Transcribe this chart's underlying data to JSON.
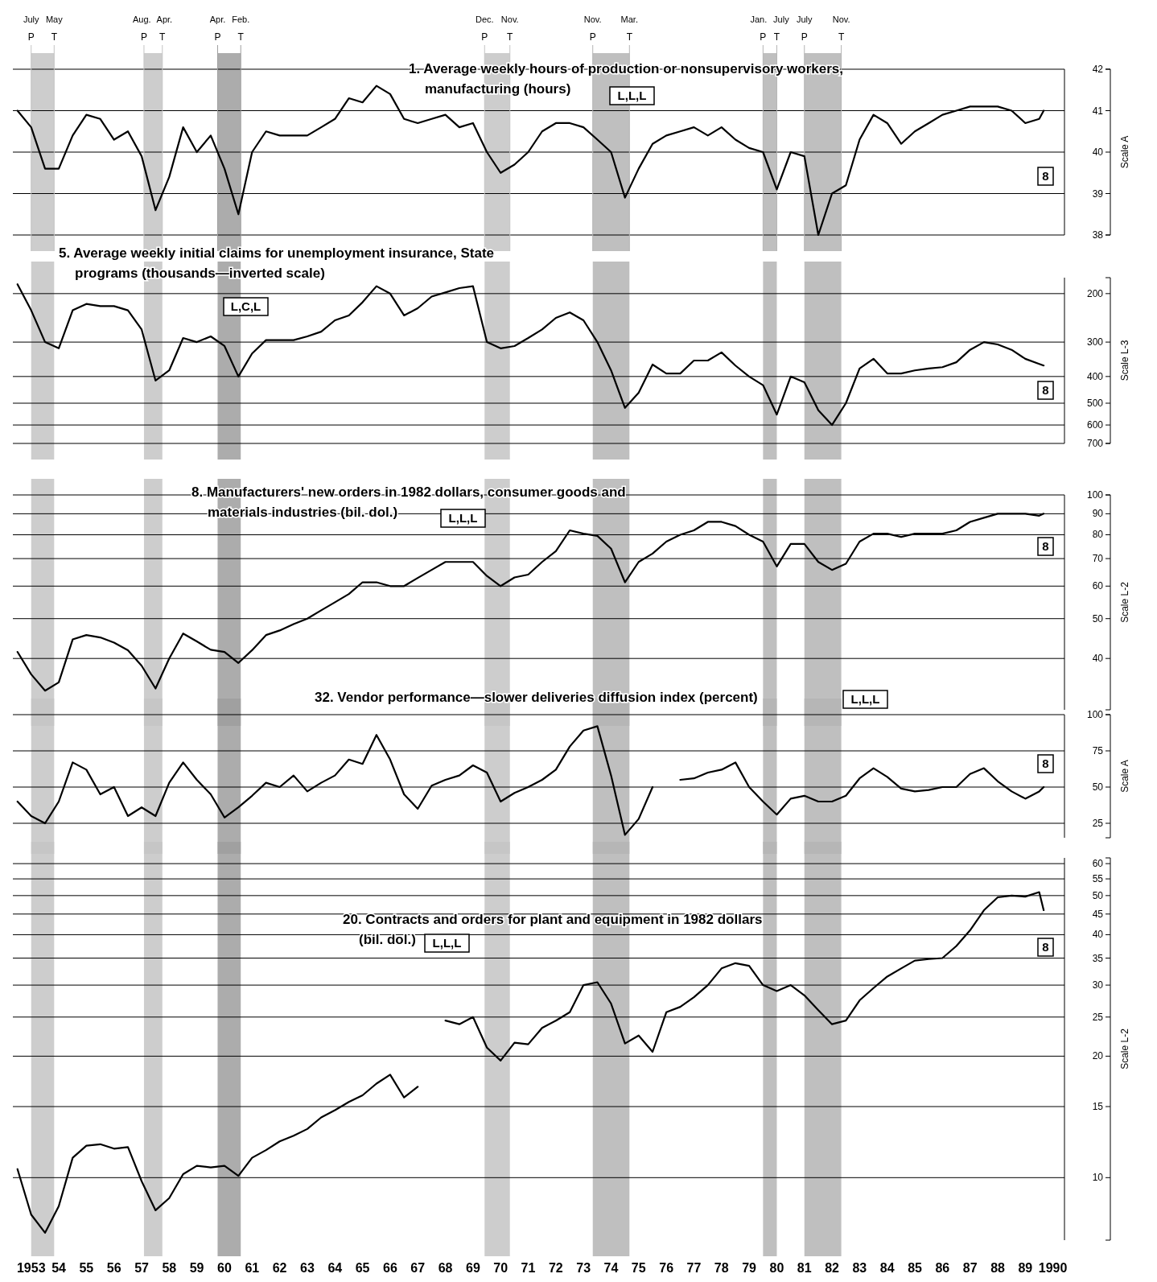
{
  "chart_data": [
    {
      "type": "line",
      "title": "1. Average weekly hours of production or nonsupervisory workers, manufacturing (hours)",
      "ylabel": "Scale A",
      "annotations": [
        "L,L,L",
        "8"
      ],
      "x": [
        "1953-01",
        "1953-07",
        "1954-01",
        "1954-07",
        "1955-01",
        "1955-07",
        "1956-01",
        "1956-07",
        "1957-01",
        "1957-07",
        "1958-01",
        "1958-07",
        "1959-01",
        "1959-07",
        "1960-01",
        "1960-07",
        "1961-01",
        "1961-07",
        "1962-01",
        "1962-07",
        "1963-01",
        "1963-07",
        "1964-01",
        "1964-07",
        "1965-01",
        "1965-07",
        "1966-01",
        "1966-07",
        "1967-01",
        "1967-07",
        "1968-01",
        "1968-07",
        "1969-01",
        "1969-07",
        "1970-01",
        "1970-07",
        "1971-01",
        "1971-07",
        "1972-01",
        "1972-07",
        "1973-01",
        "1973-07",
        "1974-01",
        "1974-07",
        "1975-01",
        "1975-07",
        "1976-01",
        "1976-07",
        "1977-01",
        "1977-07",
        "1978-01",
        "1978-07",
        "1979-01",
        "1979-07",
        "1980-01",
        "1980-07",
        "1981-01",
        "1981-07",
        "1982-01",
        "1982-07",
        "1983-01",
        "1983-07",
        "1984-01",
        "1984-07",
        "1985-01",
        "1985-07",
        "1986-01",
        "1986-07",
        "1987-01",
        "1987-07",
        "1988-01",
        "1988-07",
        "1989-01",
        "1989-07",
        "1990-01",
        "1990-03"
      ],
      "series": [
        {
          "color": "#000000",
          "values": [
            41.0,
            40.6,
            39.6,
            39.6,
            40.4,
            40.9,
            40.8,
            40.3,
            40.5,
            39.9,
            38.6,
            39.4,
            40.6,
            40.0,
            40.4,
            39.6,
            38.5,
            40.0,
            40.5,
            40.4,
            40.4,
            40.4,
            40.6,
            40.8,
            41.3,
            41.2,
            41.6,
            41.4,
            40.8,
            40.7,
            40.8,
            40.9,
            40.6,
            40.7,
            40.0,
            39.5,
            39.7,
            40.0,
            40.5,
            40.7,
            40.7,
            40.6,
            40.3,
            40.0,
            38.9,
            39.6,
            40.2,
            40.4,
            40.5,
            40.6,
            40.4,
            40.6,
            40.3,
            40.1,
            40.0,
            39.1,
            40.0,
            39.9,
            38.0,
            39.0,
            39.2,
            40.3,
            40.9,
            40.7,
            40.2,
            40.5,
            40.7,
            40.9,
            41.0,
            41.1,
            41.1,
            41.1,
            41.0,
            40.7,
            40.8,
            41.0
          ]
        }
      ],
      "xlim": [
        "1952-11",
        "1990-12"
      ],
      "ylim": [
        38,
        42
      ],
      "yticks": [
        38,
        39,
        40,
        41,
        42
      ],
      "grid": "y",
      "tick_labels": "y",
      "bands": [
        {
          "axis": "x",
          "from": "1953-07",
          "to": "1954-05",
          "color": "#c4c4c4"
        },
        {
          "axis": "x",
          "from": "1957-08",
          "to": "1958-04",
          "color": "#c4c4c4"
        },
        {
          "axis": "x",
          "from": "1960-04",
          "to": "1961-02",
          "color": "#9e9e9e"
        },
        {
          "axis": "x",
          "from": "1969-12",
          "to": "1970-11",
          "color": "#c4c4c4"
        },
        {
          "axis": "x",
          "from": "1973-11",
          "to": "1975-03",
          "color": "#b4b4b4"
        },
        {
          "axis": "x",
          "from": "1980-01",
          "to": "1980-07",
          "color": "#b4b4b4"
        },
        {
          "axis": "x",
          "from": "1981-07",
          "to": "1982-11",
          "color": "#b4b4b4"
        }
      ],
      "ref_lines": [
        {
          "axis": "x",
          "value": "1953-07",
          "label": "July P",
          "color": "#c4c4c4"
        },
        {
          "axis": "x",
          "value": "1954-05",
          "label": "May T",
          "color": "#c4c4c4"
        },
        {
          "axis": "x",
          "value": "1957-08",
          "label": "Aug. P",
          "color": "#c4c4c4"
        },
        {
          "axis": "x",
          "value": "1958-04",
          "label": "Apr. T",
          "color": "#c4c4c4"
        },
        {
          "axis": "x",
          "value": "1960-04",
          "label": "Apr. P",
          "color": "#9e9e9e"
        },
        {
          "axis": "x",
          "value": "1961-02",
          "label": "Feb. T",
          "color": "#9e9e9e"
        },
        {
          "axis": "x",
          "value": "1969-12",
          "label": "Dec. P",
          "color": "#c4c4c4"
        },
        {
          "axis": "x",
          "value": "1970-11",
          "label": "Nov. T",
          "color": "#c4c4c4"
        },
        {
          "axis": "x",
          "value": "1973-11",
          "label": "Nov. P",
          "color": "#b4b4b4"
        },
        {
          "axis": "x",
          "value": "1975-03",
          "label": "Mar. T",
          "color": "#b4b4b4"
        },
        {
          "axis": "x",
          "value": "1980-01",
          "label": "Jan. P",
          "color": "#b4b4b4"
        },
        {
          "axis": "x",
          "value": "1980-07",
          "label": "July T",
          "color": "#b4b4b4"
        },
        {
          "axis": "x",
          "value": "1981-07",
          "label": "July P",
          "color": "#b4b4b4"
        },
        {
          "axis": "x",
          "value": "1982-11",
          "label": "Nov. T",
          "color": "#b4b4b4"
        }
      ]
    },
    {
      "type": "line",
      "title": "5. Average weekly initial claims for unemployment insurance, State programs (thousands—inverted scale)",
      "ylabel": "Scale L-3",
      "annotations": [
        "L,C,L",
        "8"
      ],
      "x": [
        "1953-01",
        "1953-07",
        "1954-01",
        "1954-07",
        "1955-01",
        "1955-07",
        "1956-01",
        "1956-07",
        "1957-01",
        "1957-07",
        "1958-01",
        "1958-07",
        "1959-01",
        "1959-07",
        "1960-01",
        "1960-07",
        "1961-01",
        "1961-07",
        "1962-01",
        "1962-07",
        "1963-01",
        "1963-07",
        "1964-01",
        "1964-07",
        "1965-01",
        "1965-07",
        "1966-01",
        "1966-07",
        "1967-01",
        "1967-07",
        "1968-01",
        "1968-07",
        "1969-01",
        "1969-07",
        "1970-01",
        "1970-07",
        "1971-01",
        "1971-07",
        "1972-01",
        "1972-07",
        "1973-01",
        "1973-07",
        "1974-01",
        "1974-07",
        "1975-01",
        "1975-07",
        "1976-01",
        "1976-07",
        "1977-01",
        "1977-07",
        "1978-01",
        "1978-07",
        "1979-01",
        "1979-07",
        "1980-01",
        "1980-07",
        "1981-01",
        "1981-07",
        "1982-01",
        "1982-07",
        "1983-01",
        "1983-07",
        "1984-01",
        "1984-07",
        "1985-01",
        "1985-07",
        "1986-01",
        "1986-07",
        "1987-01",
        "1987-07",
        "1988-01",
        "1988-07",
        "1989-01",
        "1989-07",
        "1990-01",
        "1990-03"
      ],
      "series": [
        {
          "color": "#000000",
          "values": [
            185,
            230,
            300,
            316,
            230,
            218,
            222,
            222,
            230,
            270,
            414,
            380,
            290,
            300,
            286,
            310,
            400,
            330,
            295,
            295,
            295,
            286,
            275,
            250,
            240,
            215,
            188,
            200,
            240,
            226,
            205,
            198,
            191,
            188,
            300,
            316,
            310,
            290,
            270,
            245,
            234,
            250,
            300,
            380,
            520,
            458,
            362,
            390,
            390,
            350,
            350,
            327,
            365,
            400,
            430,
            550,
            400,
            420,
            530,
            600,
            500,
            374,
            345,
            390,
            390,
            380,
            374,
            370,
            355,
            320,
            300,
            306,
            320,
            345,
            360,
            365
          ]
        }
      ],
      "xlim": [
        "1952-11",
        "1990-12"
      ],
      "ylim": [
        700,
        175
      ],
      "yticks": [
        200,
        300,
        400,
        500,
        600,
        700
      ],
      "log": "y",
      "grid": "y",
      "tick_labels": "y",
      "bands": [
        {
          "axis": "x",
          "from": "1953-07",
          "to": "1954-05",
          "color": "#c4c4c4"
        },
        {
          "axis": "x",
          "from": "1957-08",
          "to": "1958-04",
          "color": "#c4c4c4"
        },
        {
          "axis": "x",
          "from": "1960-04",
          "to": "1961-02",
          "color": "#9e9e9e"
        },
        {
          "axis": "x",
          "from": "1969-12",
          "to": "1970-11",
          "color": "#c4c4c4"
        },
        {
          "axis": "x",
          "from": "1973-11",
          "to": "1975-03",
          "color": "#b4b4b4"
        },
        {
          "axis": "x",
          "from": "1980-01",
          "to": "1980-07",
          "color": "#b4b4b4"
        },
        {
          "axis": "x",
          "from": "1981-07",
          "to": "1982-11",
          "color": "#b4b4b4"
        }
      ]
    },
    {
      "type": "line",
      "title": "8. Manufacturers' new orders in 1982 dollars, consumer goods and materials industries (bil. dol.)",
      "ylabel": "Scale L-2",
      "annotations": [
        "L,L,L",
        "8"
      ],
      "x": [
        "1953-01",
        "1953-07",
        "1954-01",
        "1954-07",
        "1955-01",
        "1955-07",
        "1956-01",
        "1956-07",
        "1957-01",
        "1957-07",
        "1958-01",
        "1958-07",
        "1959-01",
        "1959-07",
        "1960-01",
        "1960-07",
        "1961-01",
        "1961-07",
        "1962-01",
        "1962-07",
        "1963-01",
        "1963-07",
        "1964-01",
        "1964-07",
        "1965-01",
        "1965-07",
        "1966-01",
        "1966-07",
        "1967-01",
        "1967-07",
        "1968-01",
        "1968-07",
        "1969-01",
        "1969-07",
        "1970-01",
        "1970-07",
        "1971-01",
        "1971-07",
        "1972-01",
        "1972-07",
        "1973-01",
        "1973-07",
        "1974-01",
        "1974-07",
        "1975-01",
        "1975-07",
        "1976-01",
        "1976-07",
        "1977-01",
        "1977-07",
        "1978-01",
        "1978-07",
        "1979-01",
        "1979-07",
        "1980-01",
        "1980-07",
        "1981-01",
        "1981-07",
        "1982-01",
        "1982-07",
        "1983-01",
        "1983-07",
        "1984-01",
        "1984-07",
        "1985-01",
        "1985-07",
        "1986-01",
        "1986-07",
        "1987-01",
        "1987-07",
        "1988-01",
        "1988-07",
        "1989-01",
        "1989-07",
        "1990-01",
        "1990-03"
      ],
      "series": [
        {
          "color": "#000000",
          "values": [
            41.5,
            36.6,
            33.4,
            35,
            44.5,
            45.6,
            45,
            43.7,
            41.9,
            38.4,
            33.8,
            40,
            46,
            44,
            42,
            41.5,
            39,
            41.9,
            45.6,
            46.8,
            48.5,
            50,
            52.4,
            54.8,
            57.4,
            61.3,
            61.3,
            60,
            60,
            62.8,
            65.7,
            68.7,
            68.7,
            68.7,
            63.5,
            60,
            63,
            64,
            68.7,
            73,
            82,
            80.5,
            79.5,
            74,
            61.3,
            68.7,
            72,
            77,
            80,
            82,
            86,
            86,
            84,
            80,
            77,
            67,
            76,
            76,
            68.7,
            65.7,
            68,
            77,
            80.5,
            80.5,
            79,
            80.5,
            80.5,
            80.5,
            82,
            86,
            88,
            90,
            90,
            90,
            89,
            90
          ]
        }
      ],
      "xlim": [
        "1952-11",
        "1990-12"
      ],
      "ylim": [
        30,
        100
      ],
      "yticks": [
        40,
        50,
        60,
        70,
        80,
        90,
        100
      ],
      "log": "y",
      "grid": "y",
      "tick_labels": "y",
      "bands": [
        {
          "axis": "x",
          "from": "1953-07",
          "to": "1954-05",
          "color": "#c4c4c4"
        },
        {
          "axis": "x",
          "from": "1957-08",
          "to": "1958-04",
          "color": "#c4c4c4"
        },
        {
          "axis": "x",
          "from": "1960-04",
          "to": "1961-02",
          "color": "#9e9e9e"
        },
        {
          "axis": "x",
          "from": "1969-12",
          "to": "1970-11",
          "color": "#c4c4c4"
        },
        {
          "axis": "x",
          "from": "1973-11",
          "to": "1975-03",
          "color": "#b4b4b4"
        },
        {
          "axis": "x",
          "from": "1980-01",
          "to": "1980-07",
          "color": "#b4b4b4"
        },
        {
          "axis": "x",
          "from": "1981-07",
          "to": "1982-11",
          "color": "#b4b4b4"
        }
      ]
    },
    {
      "type": "line",
      "title": "32. Vendor performance—slower deliveries diffusion index (percent)",
      "ylabel": "Scale A",
      "annotations": [
        "L,L,L",
        "8"
      ],
      "x": [
        "1953-01",
        "1953-07",
        "1954-01",
        "1954-07",
        "1955-01",
        "1955-07",
        "1956-01",
        "1956-07",
        "1957-01",
        "1957-07",
        "1958-01",
        "1958-07",
        "1959-01",
        "1959-07",
        "1960-01",
        "1960-07",
        "1961-01",
        "1961-07",
        "1962-01",
        "1962-07",
        "1963-01",
        "1963-07",
        "1964-01",
        "1964-07",
        "1965-01",
        "1965-07",
        "1966-01",
        "1966-07",
        "1967-01",
        "1967-07",
        "1968-01",
        "1968-07",
        "1969-01",
        "1969-07",
        "1970-01",
        "1970-07",
        "1971-01",
        "1971-07",
        "1972-01",
        "1972-07",
        "1973-01",
        "1973-07",
        "1974-01",
        "1974-07",
        "1975-01",
        "1975-07",
        "1976-01",
        "1976-07",
        "1977-01",
        "1977-07",
        "1978-01",
        "1978-07",
        "1979-01",
        "1979-07",
        "1980-01",
        "1980-07",
        "1981-01",
        "1981-07",
        "1982-01",
        "1982-07",
        "1983-01",
        "1983-07",
        "1984-01",
        "1984-07",
        "1985-01",
        "1985-07",
        "1986-01",
        "1986-07",
        "1987-01",
        "1987-07",
        "1988-01",
        "1988-07",
        "1989-01",
        "1989-07",
        "1990-01",
        "1990-03"
      ],
      "series": [
        {
          "color": "#000000",
          "values": [
            40,
            30,
            25,
            40,
            67,
            62,
            45,
            50,
            30,
            36,
            30,
            53,
            67,
            55,
            45,
            29,
            36,
            44,
            53,
            50,
            58,
            47,
            53,
            58,
            69,
            66,
            86,
            69,
            45,
            35,
            51,
            55,
            58,
            65,
            60,
            40,
            46,
            50,
            55,
            62,
            78,
            89,
            92,
            58,
            17,
            28,
            50,
            null,
            55,
            56,
            60,
            62,
            67,
            50,
            40,
            31,
            42,
            44,
            40,
            40,
            44,
            56,
            63,
            57,
            49,
            47,
            48,
            50,
            50,
            59,
            63,
            54,
            47,
            42,
            47,
            50
          ]
        }
      ],
      "xlim": [
        "1952-11",
        "1990-12"
      ],
      "ylim": [
        15,
        100
      ],
      "yticks": [
        25,
        50,
        75,
        100
      ],
      "grid": "y",
      "tick_labels": "y",
      "bands": [
        {
          "axis": "x",
          "from": "1953-07",
          "to": "1954-05",
          "color": "#c4c4c4"
        },
        {
          "axis": "x",
          "from": "1957-08",
          "to": "1958-04",
          "color": "#c4c4c4"
        },
        {
          "axis": "x",
          "from": "1960-04",
          "to": "1961-02",
          "color": "#9e9e9e"
        },
        {
          "axis": "x",
          "from": "1969-12",
          "to": "1970-11",
          "color": "#c4c4c4"
        },
        {
          "axis": "x",
          "from": "1973-11",
          "to": "1975-03",
          "color": "#b4b4b4"
        },
        {
          "axis": "x",
          "from": "1980-01",
          "to": "1980-07",
          "color": "#b4b4b4"
        },
        {
          "axis": "x",
          "from": "1981-07",
          "to": "1982-11",
          "color": "#b4b4b4"
        }
      ]
    },
    {
      "type": "line",
      "title": "20. Contracts and orders for plant and equipment in 1982 dollars (bil. dol.)",
      "ylabel": "Scale L-2",
      "annotations": [
        "L,L,L",
        "8"
      ],
      "x": [
        "1953-01",
        "1953-07",
        "1954-01",
        "1954-07",
        "1955-01",
        "1955-07",
        "1956-01",
        "1956-07",
        "1957-01",
        "1957-07",
        "1958-01",
        "1958-07",
        "1959-01",
        "1959-07",
        "1960-01",
        "1960-07",
        "1961-01",
        "1961-07",
        "1962-01",
        "1962-07",
        "1963-01",
        "1963-07",
        "1964-01",
        "1964-07",
        "1965-01",
        "1965-07",
        "1966-01",
        "1966-07",
        "1967-01",
        "1967-07",
        "1968-01",
        "1968-07",
        "1969-01",
        "1969-07",
        "1970-01",
        "1970-07",
        "1971-01",
        "1971-07",
        "1972-01",
        "1972-07",
        "1973-01",
        "1973-07",
        "1974-01",
        "1974-07",
        "1975-01",
        "1975-07",
        "1976-01",
        "1976-07",
        "1977-01",
        "1977-07",
        "1978-01",
        "1978-07",
        "1979-01",
        "1979-07",
        "1980-01",
        "1980-07",
        "1981-01",
        "1981-07",
        "1982-01",
        "1982-07",
        "1983-01",
        "1983-07",
        "1984-01",
        "1984-07",
        "1985-01",
        "1985-07",
        "1986-01",
        "1986-07",
        "1987-01",
        "1987-07",
        "1988-01",
        "1988-07",
        "1989-01",
        "1989-07",
        "1990-01",
        "1990-03"
      ],
      "series": [
        {
          "color": "#000000",
          "values": [
            10.5,
            8.1,
            7.3,
            8.5,
            11.2,
            12,
            12.1,
            11.8,
            11.9,
            9.8,
            8.3,
            8.9,
            10.2,
            10.7,
            10.6,
            10.7,
            10.1,
            11.2,
            11.7,
            12.3,
            12.7,
            13.2,
            14.1,
            14.7,
            15.4,
            16.0,
            17.1,
            18.0,
            15.8,
            16.8,
            null,
            24.5,
            24,
            25,
            21,
            19.5,
            21.6,
            21.4,
            23.5,
            24.5,
            25.7,
            30,
            30.5,
            27,
            21.5,
            22.5,
            20.5,
            25.7,
            26.5,
            28,
            30,
            33,
            34,
            33.5,
            30,
            29,
            30,
            28.3,
            26,
            24,
            24.5,
            27.5,
            29.5,
            31.5,
            33,
            34.5,
            34.8,
            35,
            37.5,
            41,
            46,
            49.5,
            50,
            49.7,
            51,
            46
          ]
        }
      ],
      "xlim": [
        "1952-11",
        "1990-12"
      ],
      "ylim": [
        7,
        62
      ],
      "yticks": [
        10,
        15,
        20,
        25,
        30,
        35,
        40,
        45,
        50,
        55,
        60
      ],
      "log": "y",
      "grid": "y",
      "xticks": [
        {
          "value": "1953-07",
          "label": "1953"
        },
        {
          "value": "1954-07",
          "label": "54"
        },
        {
          "value": "1955-07",
          "label": "55"
        },
        {
          "value": "1956-07",
          "label": "56"
        },
        {
          "value": "1957-07",
          "label": "57"
        },
        {
          "value": "1958-07",
          "label": "58"
        },
        {
          "value": "1959-07",
          "label": "59"
        },
        {
          "value": "1960-07",
          "label": "60"
        },
        {
          "value": "1961-07",
          "label": "61"
        },
        {
          "value": "1962-07",
          "label": "62"
        },
        {
          "value": "1963-07",
          "label": "63"
        },
        {
          "value": "1964-07",
          "label": "64"
        },
        {
          "value": "1965-07",
          "label": "65"
        },
        {
          "value": "1966-07",
          "label": "66"
        },
        {
          "value": "1967-07",
          "label": "67"
        },
        {
          "value": "1968-07",
          "label": "68"
        },
        {
          "value": "1969-07",
          "label": "69"
        },
        {
          "value": "1970-07",
          "label": "70"
        },
        {
          "value": "1971-07",
          "label": "71"
        },
        {
          "value": "1972-07",
          "label": "72"
        },
        {
          "value": "1973-07",
          "label": "73"
        },
        {
          "value": "1974-07",
          "label": "74"
        },
        {
          "value": "1975-07",
          "label": "75"
        },
        {
          "value": "1976-07",
          "label": "76"
        },
        {
          "value": "1977-07",
          "label": "77"
        },
        {
          "value": "1978-07",
          "label": "78"
        },
        {
          "value": "1979-07",
          "label": "79"
        },
        {
          "value": "1980-07",
          "label": "80"
        },
        {
          "value": "1981-07",
          "label": "81"
        },
        {
          "value": "1982-07",
          "label": "82"
        },
        {
          "value": "1983-07",
          "label": "83"
        },
        {
          "value": "1984-07",
          "label": "84"
        },
        {
          "value": "1985-07",
          "label": "85"
        },
        {
          "value": "1986-07",
          "label": "86"
        },
        {
          "value": "1987-07",
          "label": "87"
        },
        {
          "value": "1988-07",
          "label": "88"
        },
        {
          "value": "1989-07",
          "label": "89"
        },
        {
          "value": "1990-07",
          "label": "1990"
        }
      ],
      "bands": [
        {
          "axis": "x",
          "from": "1953-07",
          "to": "1954-05",
          "color": "#c4c4c4"
        },
        {
          "axis": "x",
          "from": "1957-08",
          "to": "1958-04",
          "color": "#c4c4c4"
        },
        {
          "axis": "x",
          "from": "1960-04",
          "to": "1961-02",
          "color": "#9e9e9e"
        },
        {
          "axis": "x",
          "from": "1969-12",
          "to": "1970-11",
          "color": "#c4c4c4"
        },
        {
          "axis": "x",
          "from": "1973-11",
          "to": "1975-03",
          "color": "#b4b4b4"
        },
        {
          "axis": "x",
          "from": "1980-01",
          "to": "1980-07",
          "color": "#b4b4b4"
        },
        {
          "axis": "x",
          "from": "1981-07",
          "to": "1982-11",
          "color": "#b4b4b4"
        }
      ]
    }
  ]
}
